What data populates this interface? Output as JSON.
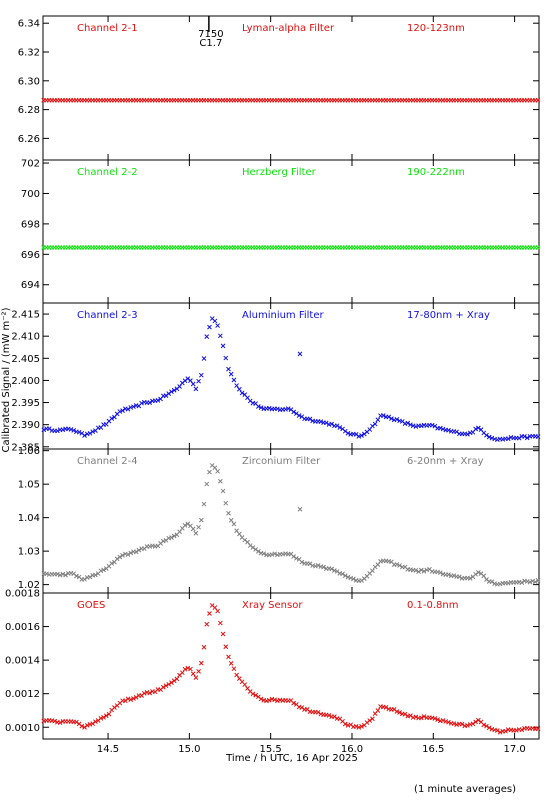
{
  "xlabel": "Time / h UTC, 16 Apr 2025",
  "ylabel": "Calibrated Signal / (mW m⁻²)",
  "footnote": "(1 minute averages)",
  "chart_data": [
    {
      "type": "scatter",
      "channel": "Channel 2-1",
      "filter": "Lyman-alpha Filter",
      "band": "120-123nm",
      "color": "#e01010",
      "ylim": [
        6.245,
        6.345
      ],
      "yticks": [
        6.26,
        6.28,
        6.3,
        6.32,
        6.34
      ],
      "ytick_labels": [
        "6.26",
        "6.28",
        "6.30",
        "6.32",
        "6.34"
      ],
      "xlim": [
        14.1,
        17.15
      ],
      "pattern": "flat",
      "flat_value": 6.2865,
      "annotation": {
        "x": 15.12,
        "lines": [
          "7150",
          "C1.7"
        ]
      }
    },
    {
      "type": "scatter",
      "channel": "Channel 2-2",
      "filter": "Herzberg Filter",
      "band": "190-222nm",
      "color": "#10e010",
      "ylim": [
        692.8,
        702.2
      ],
      "yticks": [
        694,
        696,
        698,
        700,
        702
      ],
      "ytick_labels": [
        "694",
        "696",
        "698",
        "700",
        "702"
      ],
      "xlim": [
        14.1,
        17.15
      ],
      "pattern": "flat",
      "flat_value": 696.45
    },
    {
      "type": "scatter",
      "channel": "Channel 2-3",
      "filter": "Aluminium Filter",
      "band": "17-80nm + Xray",
      "color": "#1010e0",
      "ylim": [
        2.3845,
        2.4175
      ],
      "yticks": [
        2.385,
        2.39,
        2.395,
        2.4,
        2.405,
        2.41,
        2.415
      ],
      "ytick_labels": [
        "2.385",
        "2.390",
        "2.395",
        "2.400",
        "2.405",
        "2.410",
        "2.415"
      ],
      "xlim": [
        14.1,
        17.15
      ],
      "pattern": "profile",
      "lo": 2.3865,
      "hi": 2.4145,
      "outlier": {
        "x": 15.68,
        "y": 2.406
      }
    },
    {
      "type": "scatter",
      "channel": "Channel 2-4",
      "filter": "Zirconium Filter",
      "band": "6-20nm + Xray",
      "color": "#7f7f7f",
      "ylim": [
        1.0175,
        1.0605
      ],
      "yticks": [
        1.02,
        1.03,
        1.04,
        1.05,
        1.06
      ],
      "ytick_labels": [
        "1.02",
        "1.03",
        "1.04",
        "1.05",
        "1.06"
      ],
      "xlim": [
        14.1,
        17.15
      ],
      "pattern": "profile",
      "lo": 1.02,
      "hi": 1.0565,
      "outlier": {
        "x": 15.68,
        "y": 1.0425
      }
    },
    {
      "type": "scatter",
      "channel": "GOES",
      "filter": "Xray Sensor",
      "band": "0.1-0.8nm",
      "color": "#e01010",
      "ylim": [
        0.00093,
        0.0018
      ],
      "yticks": [
        0.001,
        0.0012,
        0.0014,
        0.0016,
        0.0018
      ],
      "ytick_labels": [
        "0.0010",
        "0.0012",
        "0.0014",
        "0.0016",
        "0.0018"
      ],
      "xlim": [
        14.1,
        17.15
      ],
      "pattern": "profile",
      "lo": 0.00097,
      "hi": 0.00174
    }
  ],
  "xticks": [
    14.5,
    15.0,
    15.5,
    16.0,
    16.5,
    17.0
  ],
  "xtick_labels": [
    "14.5",
    "15.0",
    "15.5",
    "16.0",
    "16.5",
    "17.0"
  ],
  "profile_shape": [
    [
      14.1,
      0.09
    ],
    [
      14.2,
      0.08
    ],
    [
      14.28,
      0.09
    ],
    [
      14.35,
      0.04
    ],
    [
      14.42,
      0.08
    ],
    [
      14.5,
      0.14
    ],
    [
      14.58,
      0.24
    ],
    [
      14.65,
      0.26
    ],
    [
      14.72,
      0.3
    ],
    [
      14.8,
      0.32
    ],
    [
      14.88,
      0.38
    ],
    [
      14.93,
      0.42
    ],
    [
      14.97,
      0.48
    ],
    [
      15.0,
      0.5
    ],
    [
      15.04,
      0.42
    ],
    [
      15.08,
      0.55
    ],
    [
      15.11,
      0.86
    ],
    [
      15.14,
      0.98
    ],
    [
      15.17,
      0.95
    ],
    [
      15.2,
      0.8
    ],
    [
      15.24,
      0.58
    ],
    [
      15.3,
      0.42
    ],
    [
      15.38,
      0.31
    ],
    [
      15.46,
      0.25
    ],
    [
      15.55,
      0.25
    ],
    [
      15.62,
      0.25
    ],
    [
      15.7,
      0.18
    ],
    [
      15.8,
      0.15
    ],
    [
      15.9,
      0.12
    ],
    [
      15.97,
      0.06
    ],
    [
      16.05,
      0.03
    ],
    [
      16.12,
      0.1
    ],
    [
      16.18,
      0.2
    ],
    [
      16.24,
      0.18
    ],
    [
      16.32,
      0.14
    ],
    [
      16.4,
      0.11
    ],
    [
      16.48,
      0.12
    ],
    [
      16.55,
      0.09
    ],
    [
      16.65,
      0.06
    ],
    [
      16.72,
      0.05
    ],
    [
      16.78,
      0.1
    ],
    [
      16.84,
      0.03
    ],
    [
      16.9,
      0.005
    ],
    [
      17.0,
      0.02
    ],
    [
      17.15,
      0.03
    ]
  ]
}
